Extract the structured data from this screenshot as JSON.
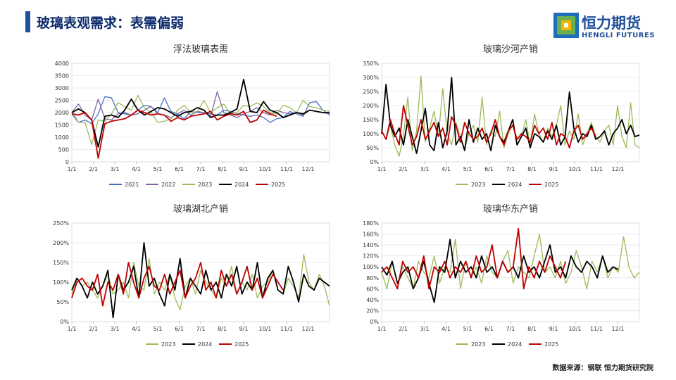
{
  "header": {
    "title": "玻璃表观需求：表需偏弱"
  },
  "logo": {
    "cn": "恒力期货",
    "en": "HENGLI FUTURES",
    "colors": {
      "blue": "#1f6fb8",
      "green": "#6ab04c",
      "yellow": "#f2b705",
      "dark": "#1f4e9b"
    }
  },
  "footer": {
    "source": "数据来源：钢联  恒力期货研究院"
  },
  "chart_data": [
    {
      "type": "line",
      "title": "浮法玻璃表需",
      "x_ticks": [
        "1/1",
        "2/1",
        "3/1",
        "4/1",
        "5/1",
        "6/1",
        "7/1",
        "8/1",
        "9/1",
        "10/1",
        "11/1",
        "12/1"
      ],
      "ylim": [
        0,
        4000
      ],
      "y_ticks": [
        "0",
        "500",
        "1000",
        "1500",
        "2000",
        "2500",
        "3000",
        "3500",
        "4000"
      ],
      "series": [
        {
          "name": "2021",
          "color": "#4472c4",
          "values": [
            1950,
            1600,
            1700,
            1550,
            1950,
            2650,
            2600,
            2000,
            1950,
            1900,
            2100,
            2300,
            2250,
            2000,
            2600,
            2050,
            1950,
            1750,
            2050,
            2000,
            2000,
            1950,
            1900,
            2100,
            2050,
            1950,
            1900,
            1850,
            1900,
            1800,
            1600,
            1750,
            1800,
            2050,
            1950,
            1850,
            2400,
            2450,
            2100,
            1900
          ]
        },
        {
          "name": "2022",
          "color": "#8064a2",
          "values": [
            2000,
            2350,
            1900,
            1700,
            2550,
            1750,
            1700,
            1950,
            2000,
            1900,
            1950,
            2100,
            2250,
            1950,
            1900,
            1800,
            1950,
            2100,
            1900,
            2050,
            2000,
            1850,
            2850,
            2000,
            1900,
            1800,
            1950,
            2050,
            2200,
            2000,
            1900,
            2100,
            2000,
            1950,
            2000,
            1900,
            2100,
            2050,
            2000,
            1950
          ]
        },
        {
          "name": "2023",
          "color": "#9bbb59",
          "values": [
            2100,
            1600,
            1600,
            700,
            1700,
            1650,
            1950,
            2400,
            2250,
            2100,
            2700,
            2200,
            2000,
            1600,
            1650,
            1750,
            2100,
            2300,
            2000,
            2050,
            2500,
            2000,
            2200,
            2350,
            1950,
            2000,
            2300,
            2250,
            2400,
            2250,
            2000,
            1950,
            2300,
            2200,
            2000,
            2500,
            2250,
            2200,
            2100,
            2050
          ]
        },
        {
          "name": "2024",
          "color": "#000000",
          "values": [
            2000,
            2150,
            2000,
            1700,
            600,
            1850,
            1900,
            1800,
            2100,
            2550,
            2100,
            1900,
            2050,
            2200,
            2150,
            2000,
            1850,
            2000,
            2050,
            2200,
            2100,
            1800,
            1900,
            1900,
            2000,
            2150,
            3350,
            2050,
            2000,
            2450,
            2100,
            2000,
            1800,
            1900,
            2000,
            1950,
            2100,
            2050,
            2000,
            2000
          ]
        },
        {
          "name": "2025",
          "color": "#c00000",
          "values": [
            1950,
            1900,
            2000,
            1700,
            150,
            1550,
            1650,
            1700,
            1750,
            1900,
            2100,
            2000,
            1900,
            1950,
            1900,
            1650,
            1800,
            1700,
            1850,
            1900,
            1950,
            2050,
            1700,
            1850,
            1950,
            1900,
            2050,
            1600,
            1700,
            2100,
            1950,
            1850
          ]
        }
      ]
    },
    {
      "type": "line",
      "title": "玻璃沙河产销",
      "x_ticks": [
        "1/1",
        "2/1",
        "3/1",
        "4/1",
        "5/1",
        "6/1",
        "7/1",
        "8/1",
        "9/1",
        "10/1",
        "11/1",
        "12/1"
      ],
      "ylim": [
        0,
        350
      ],
      "y_unit": "%",
      "y_ticks": [
        "0%",
        "50%",
        "100%",
        "150%",
        "200%",
        "250%",
        "300%",
        "350%"
      ],
      "series": [
        {
          "name": "2023",
          "color": "#9bbb59",
          "values": [
            110,
            80,
            130,
            60,
            20,
            95,
            230,
            40,
            110,
            305,
            70,
            120,
            180,
            90,
            260,
            100,
            60,
            140,
            90,
            45,
            100,
            130,
            70,
            230,
            60,
            110,
            90,
            180,
            50,
            100,
            130,
            80,
            90,
            150,
            60,
            170,
            100,
            70,
            120,
            90,
            130,
            200,
            60,
            110,
            80,
            170,
            60,
            100,
            140,
            90,
            70,
            110,
            130,
            60,
            200,
            90,
            50,
            210,
            60,
            50
          ]
        },
        {
          "name": "2024",
          "color": "#000000",
          "values": [
            100,
            275,
            130,
            90,
            120,
            60,
            150,
            90,
            30,
            110,
            190,
            60,
            40,
            140,
            50,
            110,
            300,
            60,
            90,
            40,
            150,
            70,
            120,
            80,
            100,
            40,
            130,
            90,
            70,
            110,
            150,
            60,
            90,
            120,
            50,
            100,
            90,
            70,
            110,
            80,
            130,
            60,
            90,
            248,
            120,
            70,
            100,
            90,
            130,
            80,
            90,
            110,
            60,
            100,
            120,
            150,
            100,
            130,
            90,
            95
          ]
        },
        {
          "name": "2025",
          "color": "#c00000",
          "values": [
            110,
            80,
            150,
            100,
            60,
            200,
            130,
            60,
            90,
            150,
            80,
            110,
            140,
            90,
            120,
            60,
            160,
            130,
            70,
            140,
            100,
            80,
            90,
            120,
            70,
            100,
            150,
            90,
            60,
            110,
            130,
            80,
            100,
            90,
            70,
            130,
            100,
            120,
            80,
            140,
            60,
            100,
            90,
            50,
            110,
            130,
            80,
            100,
            120,
            90
          ]
        }
      ]
    },
    {
      "type": "line",
      "title": "玻璃湖北产销",
      "x_ticks": [
        "1/1",
        "2/1",
        "3/1",
        "4/1",
        "5/1",
        "6/1",
        "7/1",
        "8/1",
        "9/1",
        "10/1",
        "11/1",
        "12/1"
      ],
      "ylim": [
        0,
        250
      ],
      "y_unit": "%",
      "y_ticks": [
        "0%",
        "50%",
        "100%",
        "150%",
        "200%",
        "250%"
      ],
      "series": [
        {
          "name": "2023",
          "color": "#9bbb59",
          "values": [
            70,
            110,
            90,
            100,
            80,
            60,
            90,
            120,
            70,
            80,
            100,
            60,
            150,
            90,
            80,
            160,
            70,
            100,
            80,
            120,
            60,
            30,
            90,
            110,
            70,
            130,
            100,
            80,
            60,
            110,
            90,
            140,
            70,
            100,
            80,
            120,
            60,
            90,
            100,
            130,
            80,
            70,
            110,
            90,
            60,
            170,
            100,
            80,
            120,
            90,
            40
          ]
        },
        {
          "name": "2024",
          "color": "#000000",
          "values": [
            80,
            110,
            90,
            60,
            100,
            70,
            90,
            130,
            10,
            120,
            80,
            100,
            140,
            60,
            200,
            90,
            110,
            70,
            40,
            120,
            80,
            160,
            60,
            110,
            90,
            70,
            130,
            80,
            100,
            60,
            120,
            90,
            140,
            70,
            100,
            80,
            150,
            60,
            110,
            130,
            80,
            70,
            140,
            100,
            50,
            120,
            90,
            80,
            110,
            100,
            90
          ]
        },
        {
          "name": "2025",
          "color": "#c00000",
          "values": [
            60,
            100,
            110,
            90,
            80,
            120,
            40,
            100,
            80,
            120,
            70,
            150,
            100,
            60,
            110,
            140,
            90,
            80,
            120,
            70,
            100,
            130,
            60,
            90,
            110,
            150,
            80,
            100,
            60,
            130,
            90,
            120,
            70,
            100,
            140,
            80,
            110,
            60,
            90,
            120,
            100,
            80
          ]
        }
      ]
    },
    {
      "type": "line",
      "title": "玻璃华东产销",
      "x_ticks": [
        "1/1",
        "2/1",
        "3/1",
        "4/1",
        "5/1",
        "6/1",
        "7/1",
        "8/1",
        "9/1",
        "10/1",
        "11/1",
        "12/1"
      ],
      "ylim": [
        0,
        180
      ],
      "y_unit": "%",
      "y_ticks": [
        "0%",
        "20%",
        "40%",
        "60%",
        "80%",
        "100%",
        "120%",
        "140%",
        "160%",
        "180%"
      ],
      "series": [
        {
          "name": "2023",
          "color": "#9bbb59",
          "values": [
            90,
            60,
            110,
            70,
            100,
            80,
            60,
            110,
            90,
            80,
            120,
            70,
            100,
            90,
            150,
            60,
            110,
            80,
            100,
            70,
            120,
            90,
            80,
            110,
            130,
            70,
            100,
            90,
            80,
            120,
            160,
            90,
            100,
            80,
            110,
            70,
            90,
            130,
            100,
            60,
            110,
            90,
            120,
            80,
            100,
            90,
            155,
            100,
            80,
            90
          ]
        },
        {
          "name": "2024",
          "color": "#000000",
          "values": [
            100,
            85,
            110,
            70,
            90,
            100,
            60,
            80,
            110,
            70,
            35,
            100,
            90,
            150,
            80,
            110,
            90,
            100,
            80,
            120,
            90,
            100,
            80,
            110,
            90,
            100,
            80,
            120,
            90,
            100,
            80,
            110,
            140,
            90,
            100,
            80,
            120,
            100,
            90,
            110,
            100,
            80,
            120,
            90,
            100,
            95
          ]
        },
        {
          "name": "2025",
          "color": "#c00000",
          "values": [
            90,
            100,
            80,
            60,
            110,
            90,
            100,
            80,
            120,
            60,
            100,
            90,
            110,
            80,
            100,
            90,
            110,
            80,
            120,
            90,
            100,
            140,
            80,
            110,
            90,
            100,
            170,
            60,
            100,
            80,
            110,
            90,
            120,
            100,
            80,
            110
          ]
        }
      ]
    }
  ]
}
